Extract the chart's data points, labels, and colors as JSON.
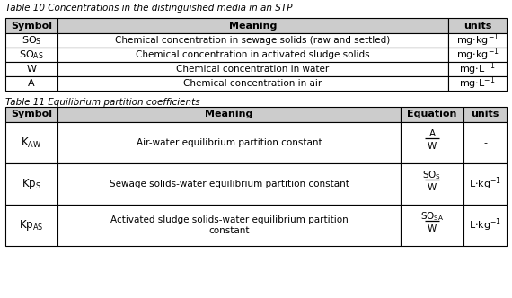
{
  "table1_title": "Table 10 Concentrations in the distinguished media in an STP",
  "table1_headers": [
    "Symbol",
    "Meaning",
    "units"
  ],
  "table1_rows": [
    [
      "$\\mathrm{SO_S}$",
      "Chemical concentration in sewage solids (raw and settled)",
      "$\\mathrm{mg{\\cdot}kg^{-1}}$"
    ],
    [
      "$\\mathrm{SO_{AS}}$",
      "Chemical concentration in activated sludge solids",
      "$\\mathrm{mg{\\cdot}kg^{-1}}$"
    ],
    [
      "W",
      "Chemical concentration in water",
      "$\\mathrm{mg{\\cdot}L^{-1}}$"
    ],
    [
      "A",
      "Chemical concentration in air",
      "$\\mathrm{mg{\\cdot}L^{-1}}$"
    ]
  ],
  "table2_title": "Table 11 Equilibrium partition coefficients",
  "table2_headers": [
    "Symbol",
    "Meaning",
    "Equation",
    "units"
  ],
  "table2_symbols": [
    "$\\mathrm{K_{AW}}$",
    "$\\mathrm{Kp_S}$",
    "$\\mathrm{Kp_{AS}}$"
  ],
  "table2_meanings": [
    "Air-water equilibrium partition constant",
    "Sewage solids-water equilibrium partition constant",
    "Activated sludge solids-water equilibrium partition\nconstant"
  ],
  "table2_eq_num": [
    "A",
    "$\\mathrm{SO_S}$",
    "$\\mathrm{SO_{SA}}$"
  ],
  "table2_eq_den": [
    "W",
    "W",
    "W"
  ],
  "table2_units": [
    "-",
    "$\\mathrm{L{\\cdot}kg^{-1}}$",
    "$\\mathrm{L{\\cdot}kg^{-1}}$"
  ],
  "header_bg": "#cccccc",
  "border_color": "#000000"
}
